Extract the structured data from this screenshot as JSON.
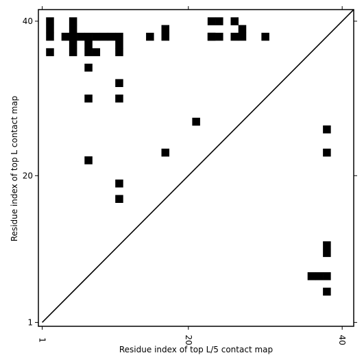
{
  "chart_data": {
    "type": "heatmap",
    "xlabel": "Residue index of top L/5 contact map",
    "ylabel": "Residue index of top L contact map",
    "x": [
      2,
      2,
      2,
      2,
      5,
      5,
      5,
      5,
      5,
      4,
      6,
      7,
      8,
      9,
      10,
      11,
      7,
      7,
      7,
      8,
      11,
      11,
      11,
      11,
      7,
      7,
      11,
      11,
      15,
      17,
      17,
      17,
      21,
      23,
      24,
      23,
      24,
      23,
      26,
      26,
      27,
      27,
      30,
      38,
      38,
      38,
      38,
      36,
      37,
      38,
      38
    ],
    "y": [
      40,
      39,
      38,
      36,
      40,
      39,
      38,
      37,
      36,
      38,
      38,
      38,
      38,
      38,
      38,
      38,
      37,
      36,
      34,
      36,
      37,
      36,
      32,
      30,
      30,
      22,
      19,
      17,
      38,
      39,
      38,
      23,
      27,
      40,
      40,
      38,
      38,
      38,
      40,
      38,
      39,
      38,
      38,
      26,
      23,
      11,
      10,
      7,
      7,
      7,
      5
    ],
    "color": "#000000",
    "diagonal": true,
    "xlim": [
      0.5,
      41.5
    ],
    "ylim": [
      0.5,
      41.5
    ],
    "xticks": [
      1,
      20,
      40
    ],
    "yticks": [
      1,
      20,
      40
    ]
  }
}
